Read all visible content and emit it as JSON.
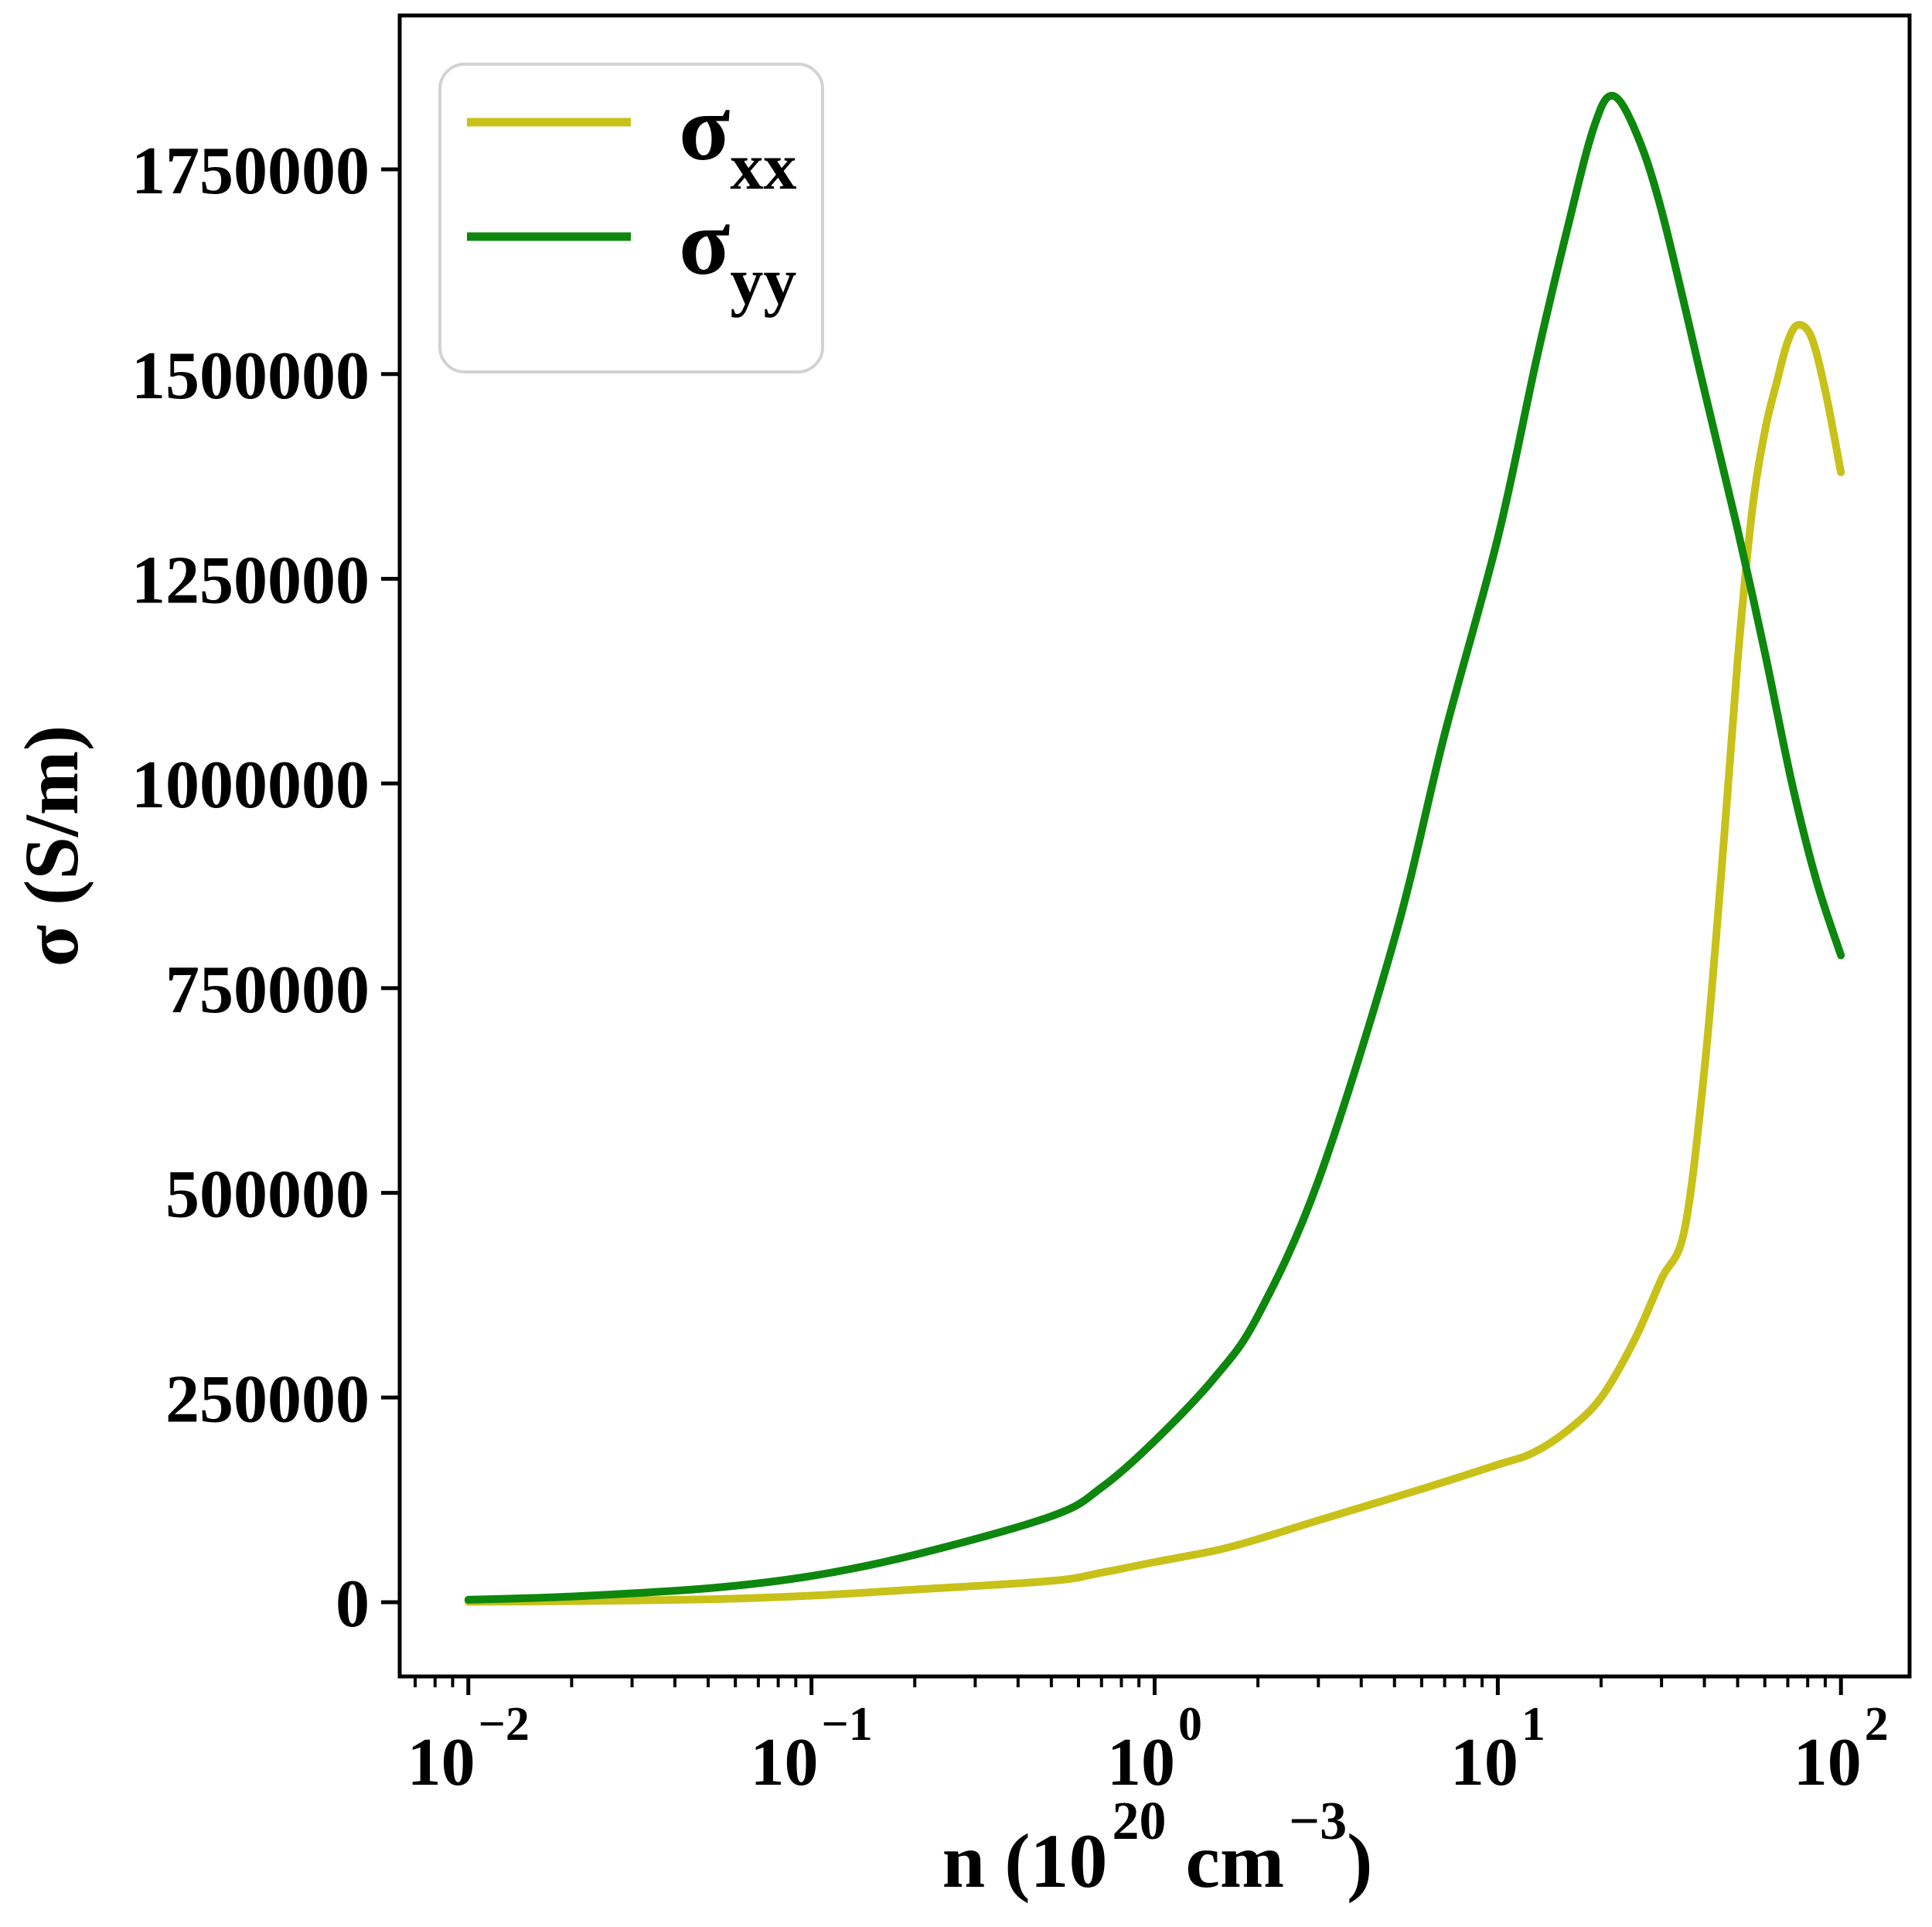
{
  "figure": {
    "background": "#ffffff"
  },
  "style_colors": {
    "spine": "#000000",
    "tick": "#000000",
    "legend_border": "#d2d2d2",
    "legend_fill": "#ffffff"
  },
  "chart_data": {
    "type": "line",
    "title": "",
    "xlabel_plain": "n (10^20 cm^-3)",
    "xlabel_rich": [
      {
        "t": "n (10",
        "sup": false
      },
      {
        "t": "20",
        "sup": true
      },
      {
        "t": " cm",
        "sup": false
      },
      {
        "t": "−3",
        "sup": true
      },
      {
        "t": ")",
        "sup": false
      }
    ],
    "ylabel": "σ (S/m)",
    "x_scale": "log",
    "grid": false,
    "xlim_log10": [
      -2.2,
      2.2
    ],
    "ylim": [
      -90700,
      1938000
    ],
    "x_major_ticks": [
      {
        "exp": -2,
        "base": "10",
        "exp_label": "−2"
      },
      {
        "exp": -1,
        "base": "10",
        "exp_label": "−1"
      },
      {
        "exp": 0,
        "base": "10",
        "exp_label": "0"
      },
      {
        "exp": 1,
        "base": "10",
        "exp_label": "1"
      },
      {
        "exp": 2,
        "base": "10",
        "exp_label": "2"
      }
    ],
    "y_tick_values": [
      0,
      250000,
      500000,
      750000,
      1000000,
      1250000,
      1500000,
      1750000
    ],
    "y_tick_labels": [
      "0",
      "250000",
      "500000",
      "750000",
      "1000000",
      "1250000",
      "1500000",
      "1750000"
    ],
    "legend": {
      "position": "upper left",
      "entries": [
        {
          "main": "σ",
          "sub": "xx",
          "color": "#c8c119"
        },
        {
          "main": "σ",
          "sub": "yy",
          "color": "#0e870e"
        }
      ]
    },
    "series": [
      {
        "name": "sigma_xx",
        "label_main": "σ",
        "label_sub": "xx",
        "color": "#c8c119",
        "points": [
          [
            0.01,
            500
          ],
          [
            0.02,
            1300
          ],
          [
            0.05,
            3600
          ],
          [
            0.1,
            8000
          ],
          [
            0.2,
            15500
          ],
          [
            0.5,
            26000
          ],
          [
            0.7,
            36000
          ],
          [
            1.0,
            49000
          ],
          [
            1.5,
            63000
          ],
          [
            2.0,
            77000
          ],
          [
            3.0,
            100000
          ],
          [
            5.0,
            128000
          ],
          [
            7.0,
            147000
          ],
          [
            10,
            168000
          ],
          [
            12.6,
            182000
          ],
          [
            16,
            210000
          ],
          [
            20,
            250000
          ],
          [
            25,
            320000
          ],
          [
            30,
            395000
          ],
          [
            35,
            455000
          ],
          [
            40,
            650000
          ],
          [
            45,
            900000
          ],
          [
            50,
            1150000
          ],
          [
            55,
            1330000
          ],
          [
            60,
            1430000
          ],
          [
            65,
            1490000
          ],
          [
            70,
            1540000
          ],
          [
            75,
            1560000
          ],
          [
            82,
            1545000
          ],
          [
            90,
            1480000
          ],
          [
            100,
            1380000
          ]
        ]
      },
      {
        "name": "sigma_yy",
        "label_main": "σ",
        "label_sub": "yy",
        "color": "#0e870e",
        "points": [
          [
            0.01,
            3000
          ],
          [
            0.02,
            7000
          ],
          [
            0.05,
            17000
          ],
          [
            0.1,
            32000
          ],
          [
            0.2,
            58000
          ],
          [
            0.5,
            105000
          ],
          [
            0.7,
            140000
          ],
          [
            1.0,
            197000
          ],
          [
            1.5,
            275000
          ],
          [
            2.0,
            350000
          ],
          [
            3.0,
            515000
          ],
          [
            5.0,
            810000
          ],
          [
            7.0,
            1060000
          ],
          [
            10,
            1300000
          ],
          [
            13,
            1520000
          ],
          [
            16,
            1680000
          ],
          [
            19,
            1800000
          ],
          [
            21.5,
            1840000
          ],
          [
            25,
            1800000
          ],
          [
            30,
            1700000
          ],
          [
            40,
            1480000
          ],
          [
            50,
            1310000
          ],
          [
            60,
            1160000
          ],
          [
            72,
            1000000
          ],
          [
            85,
            880000
          ],
          [
            100,
            790000
          ]
        ]
      }
    ]
  }
}
